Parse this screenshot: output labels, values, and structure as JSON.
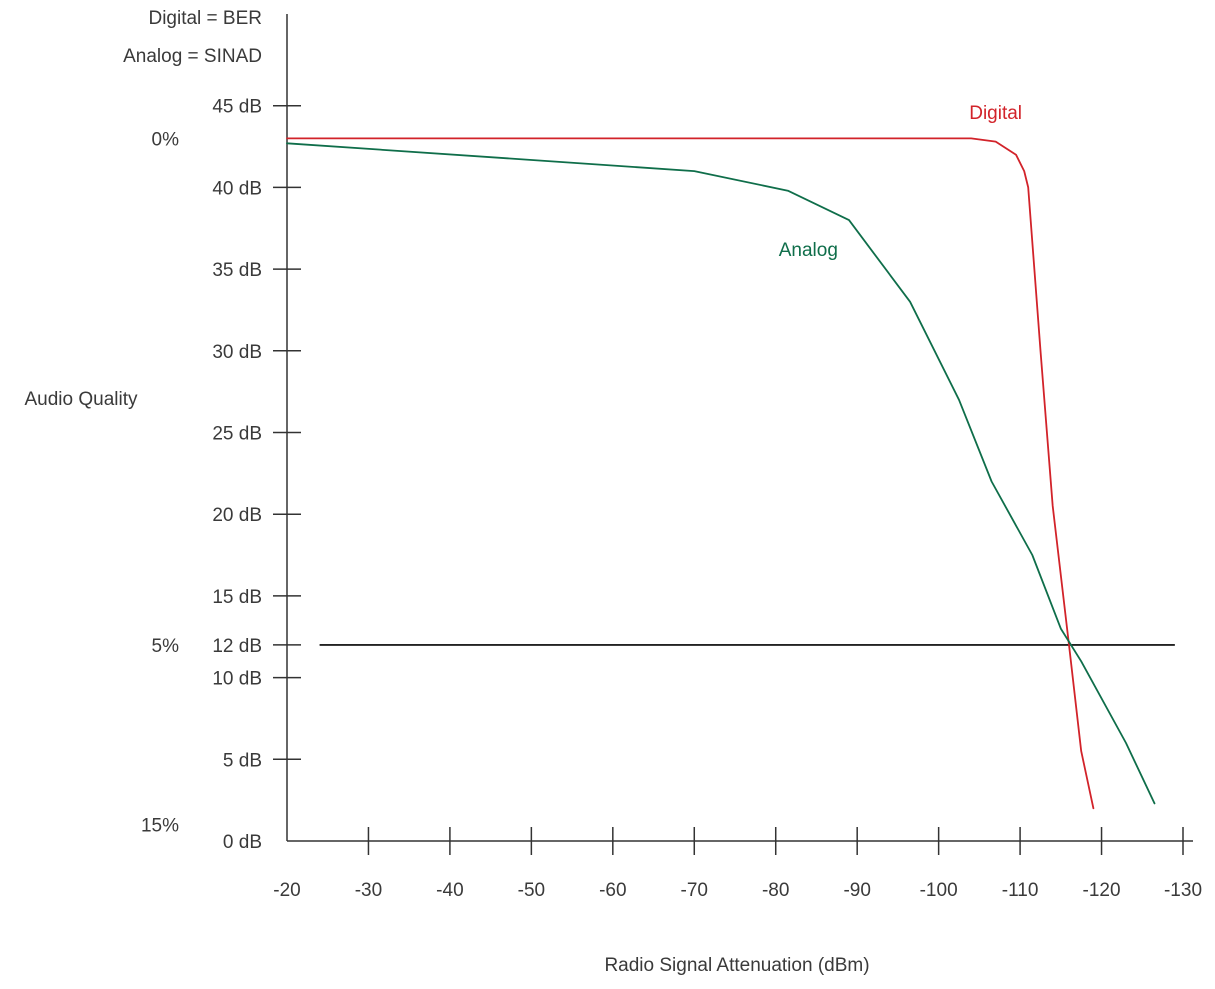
{
  "chart_data": {
    "type": "line",
    "corner_labels": [
      "Digital = BER",
      "Analog = SINAD"
    ],
    "xlabel": "Radio Signal Attenuation (dBm)",
    "ylabel": "Audio Quality",
    "x_ticks": [
      -20,
      -30,
      -40,
      -50,
      -60,
      -70,
      -80,
      -90,
      -100,
      -110,
      -120,
      -130
    ],
    "x_tick_labels": [
      "-20",
      "-30",
      "-40",
      "-50",
      "-60",
      "-70",
      "-80",
      "-90",
      "-100",
      "-110",
      "-120",
      "-130"
    ],
    "xlim": [
      -20,
      -130
    ],
    "y_ticks": [
      0,
      5,
      10,
      12,
      15,
      20,
      25,
      30,
      35,
      40,
      45
    ],
    "y_tick_labels": [
      "0 dB",
      "5 dB",
      "10 dB",
      "12 dB",
      "15 dB",
      "20 dB",
      "25 dB",
      "30 dB",
      "35 dB",
      "40 dB",
      "45 dB"
    ],
    "ylim": [
      0,
      50
    ],
    "secondary_y_labels": [
      {
        "label": "0%",
        "y": 43
      },
      {
        "label": "5%",
        "y": 12
      },
      {
        "label": "15%",
        "y": 1
      }
    ],
    "threshold": {
      "y": 12,
      "x_from": -24,
      "x_to": -129
    },
    "series": [
      {
        "name": "Digital",
        "color": "#d2232a",
        "label_at": {
          "x": -107,
          "y": 44.2
        },
        "x": [
          -20,
          -104,
          -107,
          -109.5,
          -110.5,
          -111,
          -112.5,
          -114,
          -116,
          -117.5,
          -119
        ],
        "y": [
          43,
          43,
          42.8,
          42,
          41,
          40,
          30,
          20.5,
          12,
          5.5,
          2
        ]
      },
      {
        "name": "Analog",
        "color": "#0f6e4a",
        "label_at": {
          "x": -84,
          "y": 35.8
        },
        "x": [
          -20,
          -70,
          -81.5,
          -89,
          -96.5,
          -102.5,
          -106.5,
          -111.5,
          -115,
          -117.5,
          -123,
          -126.5
        ],
        "y": [
          42.7,
          41,
          39.8,
          38,
          33,
          27,
          22,
          17.5,
          13,
          11,
          6,
          2.3
        ]
      }
    ]
  }
}
